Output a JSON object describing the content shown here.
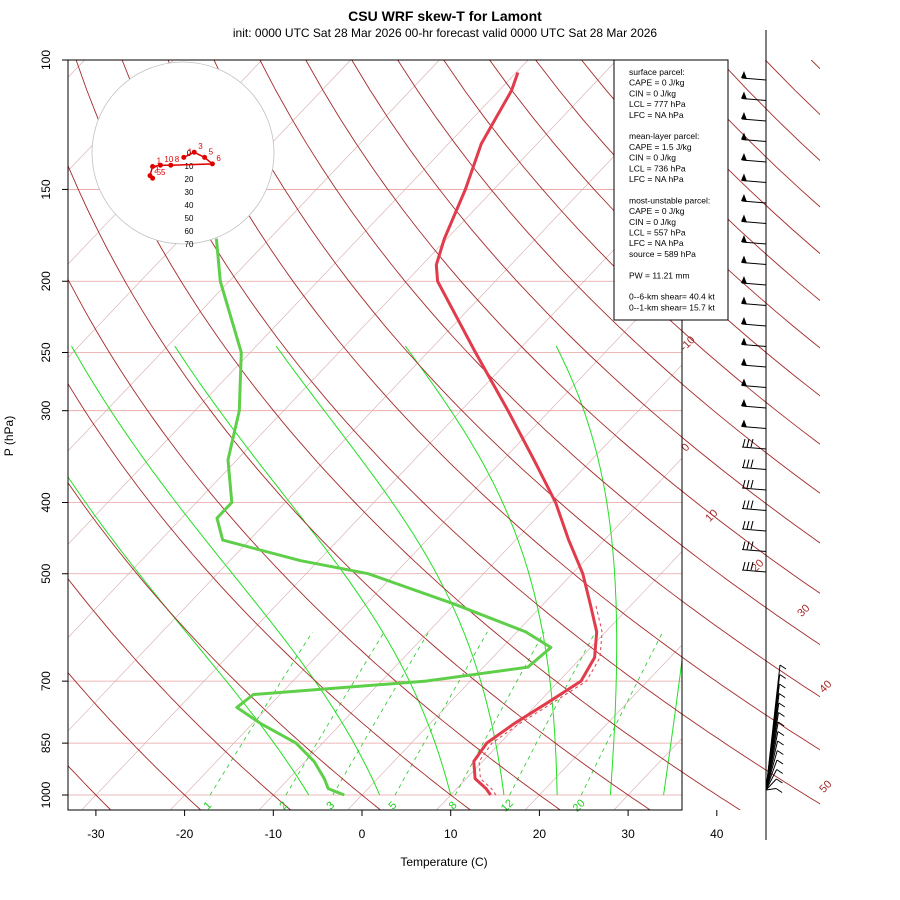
{
  "title": "CSU WRF skew-T for Lamont",
  "subtitle": "init: 0000 UTC Sat 28 Mar 2026    00-hr forecast valid 0000 UTC Sat 28 Mar 2026",
  "colors": {
    "temperature": "#e03c4b",
    "dewpoint": "#5fcf4a",
    "isotherm": "#a52a2a",
    "isobar": "#e8a0a0",
    "dry_adiabat": "#a52a2a",
    "moist_adiabat": "#22e022",
    "mixing_ratio": "#22c822",
    "hodograph": "#e00000"
  },
  "info_box": {
    "lines": [
      "surface parcel:",
      "CAPE = 0 J/kg",
      "CIN = 0 J/kg",
      "LCL = 777 hPa",
      "LFC = NA hPa",
      "",
      "mean-layer parcel:",
      "CAPE = 1.5 J/kg",
      "CIN = 0 J/kg",
      "LCL = 736 hPa",
      "LFC = NA hPa",
      "",
      "most-unstable parcel:",
      "CAPE = 0 J/kg",
      "CIN = 0 J/kg",
      "LCL = 557 hPa",
      "LFC = NA hPa",
      "source = 589 hPa",
      "",
      "PW =  11.21 mm",
      "",
      "0--6-km shear= 40.4 kt",
      "0--1-km shear= 15.7 kt"
    ]
  },
  "chart_data": {
    "type": "line",
    "title": "CSU WRF skew-T for Lamont",
    "subtitle": "init: 0000 UTC Sat 28 Mar 2026    00-hr forecast valid 0000 UTC Sat 28 Mar 2026",
    "xlabel": "Temperature (C)",
    "ylabel": "P (hPa)",
    "xlim": [
      -33,
      47
    ],
    "ylim": [
      1050,
      100
    ],
    "y_scale": "log",
    "skewed": true,
    "x_ticks": [
      -30,
      -20,
      -10,
      0,
      10,
      20,
      30,
      40
    ],
    "y_ticks": [
      100,
      150,
      200,
      250,
      300,
      400,
      500,
      700,
      850,
      1000
    ],
    "isotherm_labels": [
      -10,
      0,
      10,
      20,
      30,
      40,
      50
    ],
    "mixing_ratio_labels": [
      "1",
      "2",
      "3",
      "5",
      "8",
      "12",
      "20"
    ],
    "series": [
      {
        "name": "temperature",
        "points": [
          {
            "p": 1000,
            "t": 14.5
          },
          {
            "p": 980,
            "t": 13.3
          },
          {
            "p": 950,
            "t": 11.0
          },
          {
            "p": 900,
            "t": 9.0
          },
          {
            "p": 850,
            "t": 8.5
          },
          {
            "p": 800,
            "t": 9.5
          },
          {
            "p": 750,
            "t": 11.0
          },
          {
            "p": 700,
            "t": 12.5
          },
          {
            "p": 650,
            "t": 11.5
          },
          {
            "p": 600,
            "t": 9.0
          },
          {
            "p": 550,
            "t": 5.3
          },
          {
            "p": 500,
            "t": 1.2
          },
          {
            "p": 450,
            "t": -4.0
          },
          {
            "p": 400,
            "t": -9.5
          },
          {
            "p": 350,
            "t": -16.5
          },
          {
            "p": 300,
            "t": -24.7
          },
          {
            "p": 250,
            "t": -34.6
          },
          {
            "p": 200,
            "t": -46.5
          },
          {
            "p": 190,
            "t": -48.4
          },
          {
            "p": 175,
            "t": -50.3
          },
          {
            "p": 150,
            "t": -53.2
          },
          {
            "p": 130,
            "t": -56.3
          },
          {
            "p": 110,
            "t": -58.6
          },
          {
            "p": 104,
            "t": -59.8
          }
        ]
      },
      {
        "name": "dewpoint",
        "points": [
          {
            "p": 1000,
            "t": -2.0
          },
          {
            "p": 980,
            "t": -4.5
          },
          {
            "p": 950,
            "t": -6.0
          },
          {
            "p": 900,
            "t": -9.0
          },
          {
            "p": 850,
            "t": -13.0
          },
          {
            "p": 800,
            "t": -19.0
          },
          {
            "p": 760,
            "t": -23.5
          },
          {
            "p": 730,
            "t": -23.0
          },
          {
            "p": 700,
            "t": -5.0
          },
          {
            "p": 670,
            "t": 5.0
          },
          {
            "p": 630,
            "t": 5.5
          },
          {
            "p": 600,
            "t": 1.0
          },
          {
            "p": 550,
            "t": -10.0
          },
          {
            "p": 500,
            "t": -23.0
          },
          {
            "p": 480,
            "t": -32.0
          },
          {
            "p": 450,
            "t": -43.0
          },
          {
            "p": 420,
            "t": -46.0
          },
          {
            "p": 400,
            "t": -46.0
          },
          {
            "p": 350,
            "t": -51.0
          },
          {
            "p": 300,
            "t": -55.0
          },
          {
            "p": 250,
            "t": -61.0
          },
          {
            "p": 200,
            "t": -71.0
          },
          {
            "p": 175,
            "t": -76.0
          }
        ]
      }
    ],
    "hodograph": {
      "rings": [
        10,
        20,
        30,
        40,
        50,
        60,
        70
      ],
      "points": [
        {
          "u": -2,
          "v": 1,
          "label": "1"
        },
        {
          "u": 2,
          "v": 3,
          "label": "3"
        },
        {
          "u": 6,
          "v": 1,
          "label": "5"
        },
        {
          "u": 9,
          "v": -1.5,
          "label": "6"
        },
        {
          "u": -7,
          "v": -2,
          "label": "8"
        },
        {
          "u": -11,
          "v": -2,
          "label": "10"
        },
        {
          "u": -14,
          "v": -2.5,
          "label": "1"
        },
        {
          "u": -15,
          "v": -6,
          "label": "2"
        },
        {
          "u": -14,
          "v": -7,
          "label": "55"
        }
      ]
    }
  }
}
